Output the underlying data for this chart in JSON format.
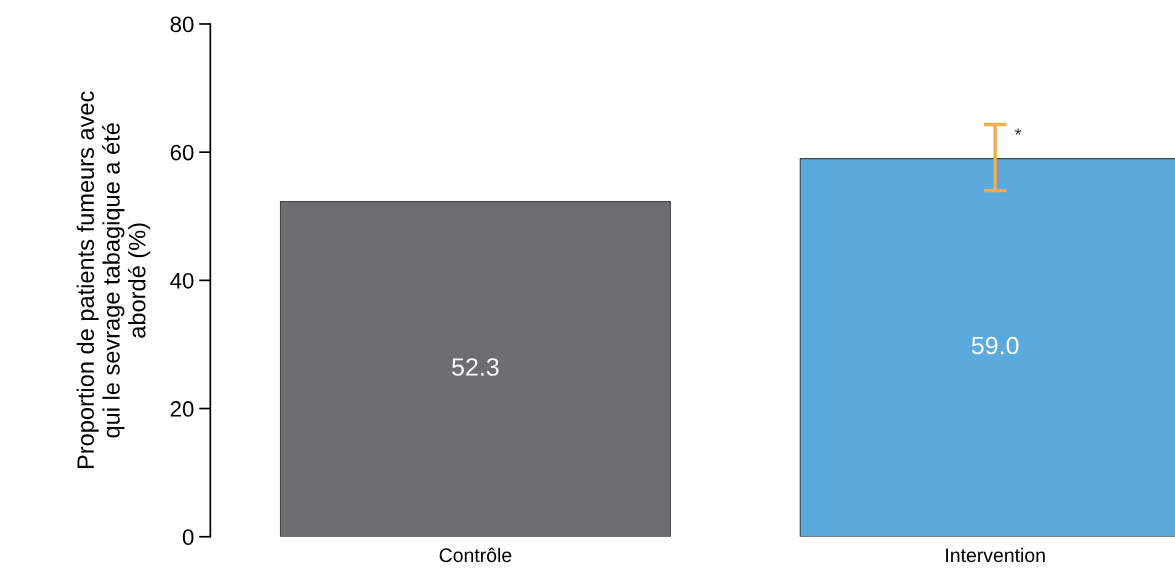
{
  "chart_data": {
    "type": "bar",
    "ylabel": "Proportion de patients fumeurs avec\nqui le sevrage tabagique a été\nabordé (%)",
    "categories": [
      "Contrôle",
      "Intervention"
    ],
    "values": [
      52.3,
      59.0
    ],
    "colors": [
      "#6e6d72",
      "#5aaadd"
    ],
    "errors": [
      null,
      [
        54.0,
        64.3
      ]
    ],
    "value_labels": [
      "52.3",
      "59.0"
    ],
    "ylim": [
      0,
      80
    ],
    "yticks": [
      0,
      20,
      40,
      60,
      80
    ],
    "annotations": [
      {
        "text": "*",
        "x": "Intervention",
        "y": 62.5
      }
    ],
    "grid": false,
    "legend": false
  }
}
